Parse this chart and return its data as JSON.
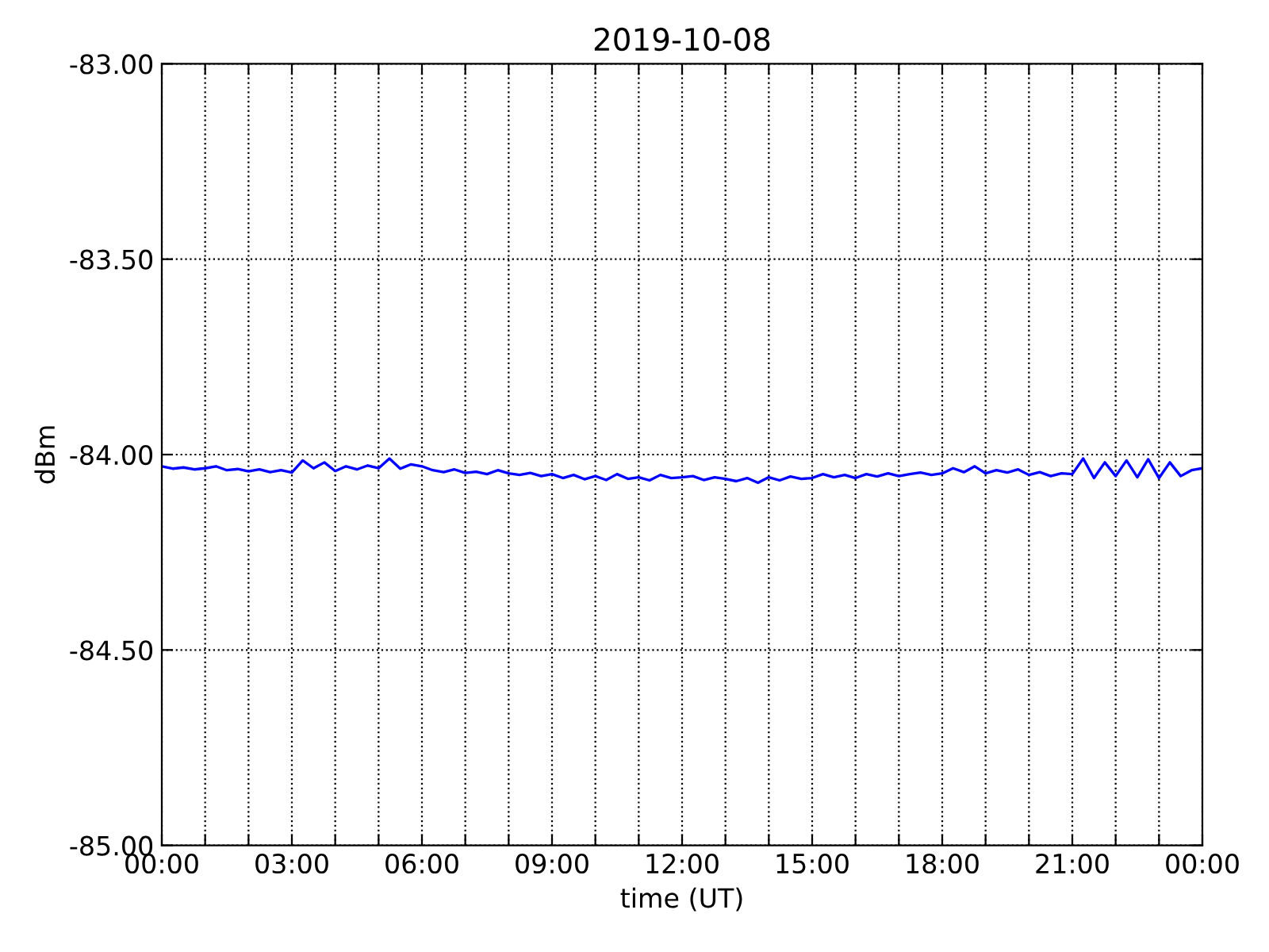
{
  "chart_data": {
    "type": "line",
    "title": "2019-10-08",
    "xlabel": "time (UT)",
    "ylabel": "dBm",
    "x": [
      0,
      0.25,
      0.5,
      0.75,
      1,
      1.25,
      1.5,
      1.75,
      2,
      2.25,
      2.5,
      2.75,
      3,
      3.25,
      3.5,
      3.75,
      4,
      4.25,
      4.5,
      4.75,
      5,
      5.25,
      5.5,
      5.75,
      6,
      6.25,
      6.5,
      6.75,
      7,
      7.25,
      7.5,
      7.75,
      8,
      8.25,
      8.5,
      8.75,
      9,
      9.25,
      9.5,
      9.75,
      10,
      10.25,
      10.5,
      10.75,
      11,
      11.25,
      11.5,
      11.75,
      12,
      12.25,
      12.5,
      12.75,
      13,
      13.25,
      13.5,
      13.75,
      14,
      14.25,
      14.5,
      14.75,
      15,
      15.25,
      15.5,
      15.75,
      16,
      16.25,
      16.5,
      16.75,
      17,
      17.25,
      17.5,
      17.75,
      18,
      18.25,
      18.5,
      18.75,
      19,
      19.25,
      19.5,
      19.75,
      20,
      20.25,
      20.5,
      20.75,
      21,
      21.25,
      21.5,
      21.75,
      22,
      22.25,
      22.5,
      22.75,
      23,
      23.25,
      23.5,
      23.75,
      24
    ],
    "series": [
      {
        "color": "#0000ff",
        "values": [
          -84.03,
          -84.036,
          -84.033,
          -84.038,
          -84.035,
          -84.03,
          -84.04,
          -84.037,
          -84.043,
          -84.038,
          -84.045,
          -84.04,
          -84.046,
          -84.015,
          -84.035,
          -84.02,
          -84.042,
          -84.03,
          -84.038,
          -84.028,
          -84.035,
          -84.01,
          -84.036,
          -84.025,
          -84.03,
          -84.04,
          -84.045,
          -84.038,
          -84.047,
          -84.044,
          -84.05,
          -84.04,
          -84.048,
          -84.052,
          -84.047,
          -84.055,
          -84.05,
          -84.06,
          -84.052,
          -84.063,
          -84.055,
          -84.065,
          -84.05,
          -84.062,
          -84.058,
          -84.066,
          -84.052,
          -84.06,
          -84.058,
          -84.055,
          -84.065,
          -84.058,
          -84.062,
          -84.068,
          -84.06,
          -84.072,
          -84.058,
          -84.066,
          -84.056,
          -84.062,
          -84.06,
          -84.05,
          -84.058,
          -84.052,
          -84.06,
          -84.05,
          -84.056,
          -84.048,
          -84.055,
          -84.05,
          -84.046,
          -84.052,
          -84.048,
          -84.035,
          -84.045,
          -84.03,
          -84.048,
          -84.04,
          -84.046,
          -84.038,
          -84.052,
          -84.045,
          -84.055,
          -84.048,
          -84.05,
          -84.01,
          -84.06,
          -84.02,
          -84.055,
          -84.015,
          -84.058,
          -84.012,
          -84.06,
          -84.02,
          -84.055,
          -84.04,
          -84.035
        ]
      }
    ],
    "xlim": [
      0,
      24
    ],
    "xticks": [
      {
        "value": 0,
        "label": "00:00"
      },
      {
        "value": 1,
        "label": null
      },
      {
        "value": 2,
        "label": null
      },
      {
        "value": 3,
        "label": "03:00"
      },
      {
        "value": 4,
        "label": null
      },
      {
        "value": 5,
        "label": null
      },
      {
        "value": 6,
        "label": "06:00"
      },
      {
        "value": 7,
        "label": null
      },
      {
        "value": 8,
        "label": null
      },
      {
        "value": 9,
        "label": "09:00"
      },
      {
        "value": 10,
        "label": null
      },
      {
        "value": 11,
        "label": null
      },
      {
        "value": 12,
        "label": "12:00"
      },
      {
        "value": 13,
        "label": null
      },
      {
        "value": 14,
        "label": null
      },
      {
        "value": 15,
        "label": "15:00"
      },
      {
        "value": 16,
        "label": null
      },
      {
        "value": 17,
        "label": null
      },
      {
        "value": 18,
        "label": "18:00"
      },
      {
        "value": 19,
        "label": null
      },
      {
        "value": 20,
        "label": null
      },
      {
        "value": 21,
        "label": "21:00"
      },
      {
        "value": 22,
        "label": null
      },
      {
        "value": 23,
        "label": null
      },
      {
        "value": 24,
        "label": "00:00"
      }
    ],
    "ylim": [
      -85,
      -83
    ],
    "yticks": [
      {
        "value": -85,
        "label": "-85.00"
      },
      {
        "value": -84.5,
        "label": "-84.50"
      },
      {
        "value": -84,
        "label": "-84.00"
      },
      {
        "value": -83.5,
        "label": "-83.50"
      },
      {
        "value": -83,
        "label": "-83.00"
      }
    ],
    "grid": true,
    "line_style": "solid",
    "marker": "none"
  }
}
